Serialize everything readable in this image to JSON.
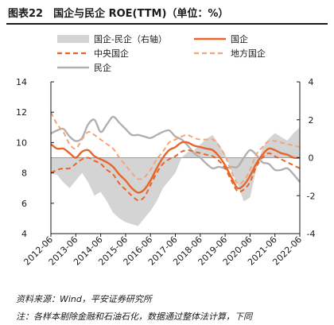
{
  "header": {
    "title": "图表22　国企与民企 ROE(TTM)（单位：%）"
  },
  "footer": {
    "source": "资料来源：Wind，平安证券研究所",
    "note": "注：各样本剔除金融和石油石化，数据通过整体法计算，下同"
  },
  "chart_data": {
    "type": "line",
    "title": "国企与民企 ROE(TTM)（单位：%）",
    "x_labels": [
      "2012-06",
      "2013-06",
      "2014-06",
      "2015-06",
      "2016-06",
      "2017-06",
      "2018-06",
      "2019-06",
      "2020-06",
      "2021-06",
      "2022-06"
    ],
    "x": [
      2012.5,
      2012.75,
      2013.0,
      2013.25,
      2013.5,
      2013.75,
      2014.0,
      2014.25,
      2014.5,
      2014.75,
      2015.0,
      2015.25,
      2015.5,
      2015.75,
      2016.0,
      2016.25,
      2016.5,
      2016.75,
      2017.0,
      2017.25,
      2017.5,
      2017.75,
      2018.0,
      2018.25,
      2018.5,
      2018.75,
      2019.0,
      2019.25,
      2019.5,
      2019.75,
      2020.0,
      2020.25,
      2020.5,
      2020.75,
      2021.0,
      2021.25,
      2021.5,
      2021.75,
      2022.0,
      2022.25,
      2022.5
    ],
    "left_axis": {
      "ylim": [
        4,
        14
      ],
      "ticks": [
        4,
        6,
        8,
        10,
        12,
        14
      ]
    },
    "right_axis": {
      "ylim": [
        -4,
        4
      ],
      "ticks": [
        -4,
        -2,
        0,
        2,
        4
      ]
    },
    "series": [
      {
        "name": "国企-民企（右轴）",
        "axis": "right",
        "style": "area",
        "color": "#d4d4d4",
        "values": [
          -0.8,
          -0.9,
          -1.3,
          -1.6,
          -1.2,
          -0.8,
          -1.3,
          -2.0,
          -1.8,
          -2.3,
          -2.9,
          -3.2,
          -3.4,
          -3.5,
          -3.6,
          -3.2,
          -2.8,
          -2.3,
          -1.6,
          -1.2,
          -0.8,
          0.0,
          0.3,
          0.4,
          0.7,
          1.0,
          1.2,
          0.7,
          0.2,
          -0.7,
          -1.4,
          -2.3,
          -2.1,
          -0.6,
          0.5,
          1.0,
          1.3,
          1.1,
          0.9,
          1.3,
          1.6
        ]
      },
      {
        "name": "国企",
        "axis": "left",
        "style": "solid",
        "color": "#e8652a",
        "values": [
          9.9,
          9.6,
          9.6,
          9.3,
          9.0,
          9.4,
          9.5,
          9.1,
          8.9,
          8.7,
          8.4,
          7.9,
          7.5,
          7.0,
          6.7,
          6.9,
          7.5,
          8.3,
          9.0,
          9.5,
          9.7,
          10.0,
          10.0,
          9.8,
          9.7,
          9.6,
          9.5,
          9.1,
          8.5,
          7.7,
          7.0,
          7.2,
          7.8,
          8.6,
          9.2,
          9.6,
          9.5,
          9.3,
          9.2,
          9.0,
          9.0
        ]
      },
      {
        "name": "中央国企",
        "axis": "left",
        "style": "dashed",
        "color": "#e8652a",
        "values": [
          8.0,
          8.2,
          8.3,
          8.3,
          8.6,
          8.9,
          9.0,
          8.8,
          8.6,
          8.2,
          7.9,
          7.3,
          6.9,
          6.5,
          6.2,
          6.4,
          7.2,
          8.0,
          8.6,
          8.9,
          9.1,
          9.4,
          9.5,
          9.4,
          9.3,
          9.2,
          9.1,
          8.8,
          8.3,
          7.5,
          6.8,
          6.9,
          7.4,
          8.4,
          9.0,
          9.3,
          9.1,
          8.9,
          8.7,
          8.5,
          8.3
        ]
      },
      {
        "name": "地方国企",
        "axis": "left",
        "style": "dashed",
        "color": "#f4a578",
        "values": [
          12.0,
          11.2,
          10.7,
          9.9,
          9.6,
          10.2,
          10.7,
          10.5,
          10.2,
          9.9,
          9.6,
          9.0,
          8.5,
          8.0,
          7.6,
          7.7,
          8.2,
          8.9,
          9.4,
          10.0,
          10.2,
          10.4,
          10.5,
          10.3,
          10.2,
          10.2,
          10.2,
          9.8,
          9.1,
          8.1,
          7.3,
          7.5,
          8.2,
          9.2,
          9.7,
          10.1,
          10.1,
          10.0,
          9.9,
          9.8,
          9.7
        ]
      },
      {
        "name": "民企",
        "axis": "left",
        "style": "solid",
        "color": "#b0b0b0",
        "values": [
          10.6,
          10.8,
          10.9,
          10.4,
          10.1,
          10.3,
          11.2,
          11.5,
          10.7,
          11.2,
          11.7,
          11.3,
          10.9,
          10.5,
          10.5,
          10.4,
          10.3,
          10.5,
          10.7,
          10.8,
          10.4,
          10.2,
          9.8,
          9.3,
          9.0,
          8.6,
          8.3,
          8.4,
          8.3,
          8.4,
          8.4,
          9.0,
          9.5,
          9.2,
          8.7,
          8.6,
          8.2,
          8.2,
          8.3,
          7.9,
          7.4
        ]
      }
    ],
    "legend": "top",
    "grid": false
  }
}
